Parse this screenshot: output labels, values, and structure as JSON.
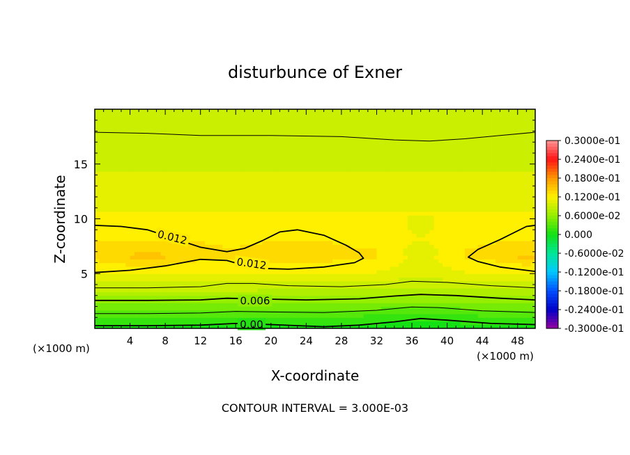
{
  "chart_data": {
    "type": "heatmap",
    "title": "disturbunce of Exner",
    "xlabel": "X-coordinate",
    "ylabel": "Z-coordinate",
    "x_unit_left": "(×1000 m)",
    "x_unit_right": "(×1000 m)",
    "xlim": [
      0,
      50
    ],
    "ylim": [
      0,
      20
    ],
    "x_ticks": [
      4,
      8,
      12,
      16,
      20,
      24,
      28,
      32,
      36,
      40,
      44,
      48
    ],
    "x_tick_labels": [
      "4",
      "8",
      "12",
      "16",
      "20",
      "24",
      "28",
      "32",
      "36",
      "40",
      "44",
      "48"
    ],
    "y_ticks": [
      5,
      10,
      15
    ],
    "y_tick_labels": [
      "5",
      "10",
      "15"
    ],
    "footer": "CONTOUR INTERVAL = 3.000E-03",
    "contour_interval": 0.003,
    "colorbar": {
      "min": -0.03,
      "max": 0.03,
      "labels": [
        "0.3000e-01",
        "0.2400e-01",
        "0.1800e-01",
        "0.1200e-01",
        "0.6000e-02",
        "0.000",
        "-0.6000e-02",
        "-0.1200e-01",
        "-0.1800e-01",
        "-0.2400e-01",
        "-0.3000e-01"
      ]
    },
    "contour_labels": [
      {
        "text": "0.012",
        "x": 8.8,
        "y": 8.3,
        "rotate": 14
      },
      {
        "text": "0.012",
        "x": 17.8,
        "y": 5.9,
        "rotate": 8
      },
      {
        "text": "0.006",
        "x": 18.2,
        "y": 2.5,
        "rotate": 0
      },
      {
        "text": "0.00",
        "x": 17.8,
        "y": 0.35,
        "rotate": 0
      }
    ],
    "contours": [
      {
        "level": 0.012,
        "bold": true,
        "points": [
          [
            0,
            9.4
          ],
          [
            3,
            9.3
          ],
          [
            6,
            9.0
          ],
          [
            9,
            8.2
          ],
          [
            12,
            7.4
          ],
          [
            15,
            7.0
          ],
          [
            17,
            7.3
          ],
          [
            19,
            8.0
          ],
          [
            21,
            8.8
          ],
          [
            23,
            9.0
          ],
          [
            26,
            8.5
          ],
          [
            28.5,
            7.6
          ],
          [
            30,
            6.9
          ],
          [
            30.5,
            6.4
          ],
          [
            29.5,
            6.0
          ],
          [
            26,
            5.6
          ],
          [
            22,
            5.4
          ],
          [
            18,
            5.5
          ],
          [
            15,
            6.2
          ],
          [
            12,
            6.3
          ],
          [
            8,
            5.7
          ],
          [
            4,
            5.3
          ],
          [
            0,
            5.1
          ]
        ]
      },
      {
        "level": 0.012,
        "bold": true,
        "points": [
          [
            50,
            9.4
          ],
          [
            49,
            9.3
          ],
          [
            46,
            8.1
          ],
          [
            43.5,
            7.2
          ],
          [
            42.4,
            6.5
          ],
          [
            43.5,
            6.1
          ],
          [
            46,
            5.6
          ],
          [
            50,
            5.2
          ]
        ]
      },
      {
        "level": 0.009,
        "bold": false,
        "points": [
          [
            0,
            17.9
          ],
          [
            6,
            17.8
          ],
          [
            12,
            17.6
          ],
          [
            20,
            17.6
          ],
          [
            28,
            17.5
          ],
          [
            34,
            17.2
          ],
          [
            38,
            17.1
          ],
          [
            42,
            17.3
          ],
          [
            46,
            17.6
          ],
          [
            50,
            17.9
          ]
        ]
      },
      {
        "level": 0.009,
        "bold": false,
        "points": [
          [
            0,
            3.7
          ],
          [
            6,
            3.7
          ],
          [
            12,
            3.8
          ],
          [
            15,
            4.1
          ],
          [
            18,
            4.1
          ],
          [
            22,
            3.9
          ],
          [
            28,
            3.8
          ],
          [
            33,
            4.0
          ],
          [
            36,
            4.3
          ],
          [
            40,
            4.2
          ],
          [
            45,
            3.9
          ],
          [
            50,
            3.7
          ]
        ]
      },
      {
        "level": 0.006,
        "bold": true,
        "points": [
          [
            0,
            2.55
          ],
          [
            6,
            2.55
          ],
          [
            12,
            2.6
          ],
          [
            15,
            2.75
          ],
          [
            18,
            2.7
          ],
          [
            24,
            2.6
          ],
          [
            30,
            2.7
          ],
          [
            34,
            2.95
          ],
          [
            37,
            3.1
          ],
          [
            41,
            3.0
          ],
          [
            46,
            2.75
          ],
          [
            50,
            2.6
          ]
        ]
      },
      {
        "level": 0.003,
        "bold": false,
        "points": [
          [
            0,
            1.35
          ],
          [
            6,
            1.35
          ],
          [
            12,
            1.4
          ],
          [
            16,
            1.55
          ],
          [
            20,
            1.5
          ],
          [
            26,
            1.45
          ],
          [
            32,
            1.65
          ],
          [
            36,
            1.95
          ],
          [
            39,
            1.9
          ],
          [
            44,
            1.6
          ],
          [
            50,
            1.45
          ]
        ]
      },
      {
        "level": 0.0,
        "bold": true,
        "points": [
          [
            0,
            0.25
          ],
          [
            6,
            0.25
          ],
          [
            12,
            0.3
          ],
          [
            16,
            0.45
          ],
          [
            20,
            0.35
          ],
          [
            26,
            0.15
          ],
          [
            30,
            0.3
          ],
          [
            34,
            0.6
          ],
          [
            37,
            0.9
          ],
          [
            40,
            0.75
          ],
          [
            45,
            0.45
          ],
          [
            50,
            0.35
          ]
        ]
      }
    ],
    "grid": false,
    "legend": "colorbar right"
  }
}
